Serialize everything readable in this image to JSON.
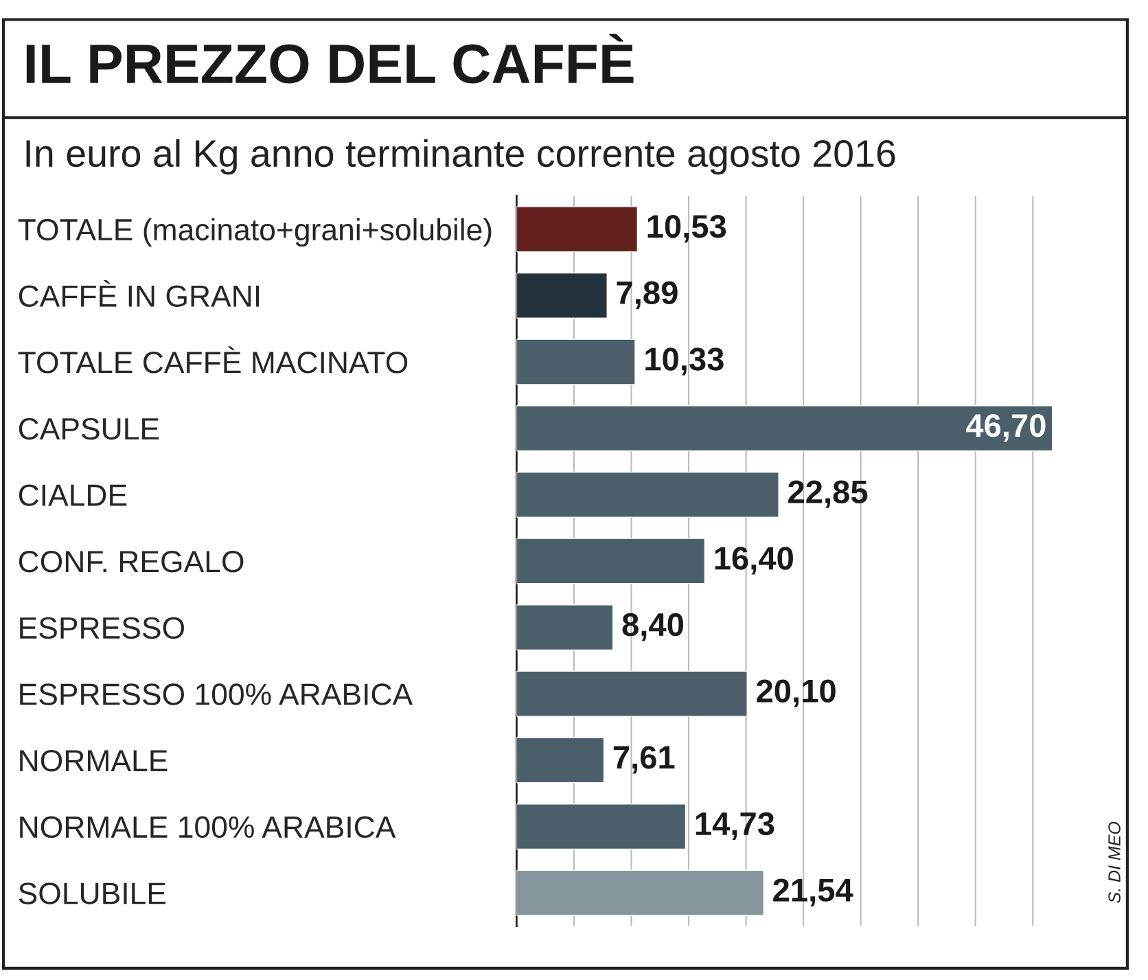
{
  "chart_data": {
    "type": "bar",
    "orientation": "horizontal",
    "title": "IL PREZZO DEL CAFFÈ",
    "subtitle": "In euro al Kg anno terminante corrente agosto 2016",
    "categories": [
      "TOTALE (macinato+grani+solubile)",
      "CAFFÈ IN GRANI",
      "TOTALE CAFFÈ MACINATO",
      "CAPSULE",
      "CIALDE",
      "CONF. REGALO",
      "ESPRESSO",
      "ESPRESSO 100% ARABICA",
      "NORMALE",
      "NORMALE 100% ARABICA",
      "SOLUBILE"
    ],
    "values": [
      10.53,
      7.89,
      10.33,
      46.7,
      22.85,
      16.4,
      8.4,
      20.1,
      7.61,
      14.73,
      21.54
    ],
    "value_labels": [
      "10,53",
      "7,89",
      "10,33",
      "46,70",
      "22,85",
      "16,40",
      "8,40",
      "20,10",
      "7,61",
      "14,73",
      "21,54"
    ],
    "colors": [
      "#62201f",
      "#26323b",
      "#4b5f6b",
      "#4b5f6b",
      "#4b5f6b",
      "#4b5f6b",
      "#4b5f6b",
      "#4b5f6b",
      "#4b5f6b",
      "#4b5f6b",
      "#84969c"
    ],
    "xticks": [
      {
        "value": 5,
        "label": null
      },
      {
        "value": 10,
        "label": null
      },
      {
        "value": 15,
        "label": null
      },
      {
        "value": 20,
        "label": null
      },
      {
        "value": 25,
        "label": null
      },
      {
        "value": 30,
        "label": null
      },
      {
        "value": 35,
        "label": null
      },
      {
        "value": 40,
        "label": null
      },
      {
        "value": 45,
        "label": null
      }
    ],
    "grid": "x",
    "tick_labels": "y",
    "annotations": [
      "S. DI MEO"
    ]
  }
}
